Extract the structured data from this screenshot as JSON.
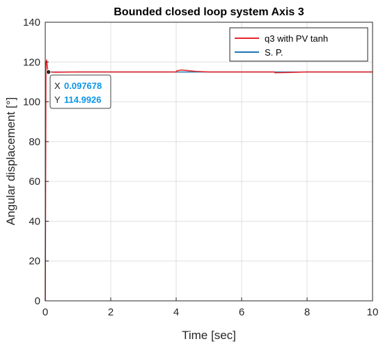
{
  "chart_data": {
    "type": "line",
    "title": "Bounded closed loop system Axis 3",
    "xlabel": "Time [sec]",
    "ylabel": "Angular displacement [°]",
    "xlim": [
      0,
      10
    ],
    "ylim": [
      0,
      140
    ],
    "xticks": [
      0,
      2,
      4,
      6,
      8,
      10
    ],
    "yticks": [
      0,
      20,
      40,
      60,
      80,
      100,
      120,
      140
    ],
    "grid": true,
    "legend_position": "top-right",
    "series": [
      {
        "name": "q3 with PV tanh",
        "color": "#e8262a",
        "x": [
          0,
          0.02,
          0.04,
          0.06,
          0.08,
          0.0977,
          0.3,
          1.0,
          2.0,
          4.0,
          4.02,
          4.15,
          4.35,
          4.6,
          5.0,
          7.0,
          7.02,
          7.3,
          7.7,
          8.0,
          10.0
        ],
        "y": [
          0,
          118.5,
          121,
          118,
          115.5,
          115.0,
          114.9,
          115.0,
          115.0,
          115.0,
          115.6,
          116.0,
          115.7,
          115.3,
          115.0,
          115.0,
          114.6,
          114.7,
          114.9,
          115.0,
          115.0
        ]
      },
      {
        "name": "S. P.",
        "color": "#1f77b4",
        "x": [
          0,
          10
        ],
        "y": [
          115,
          115
        ]
      }
    ],
    "datatip": {
      "x_label": "X",
      "x_value": "0.097678",
      "y_label": "Y",
      "y_value": "114.9926",
      "x": 0.097678,
      "y": 114.9926
    }
  }
}
